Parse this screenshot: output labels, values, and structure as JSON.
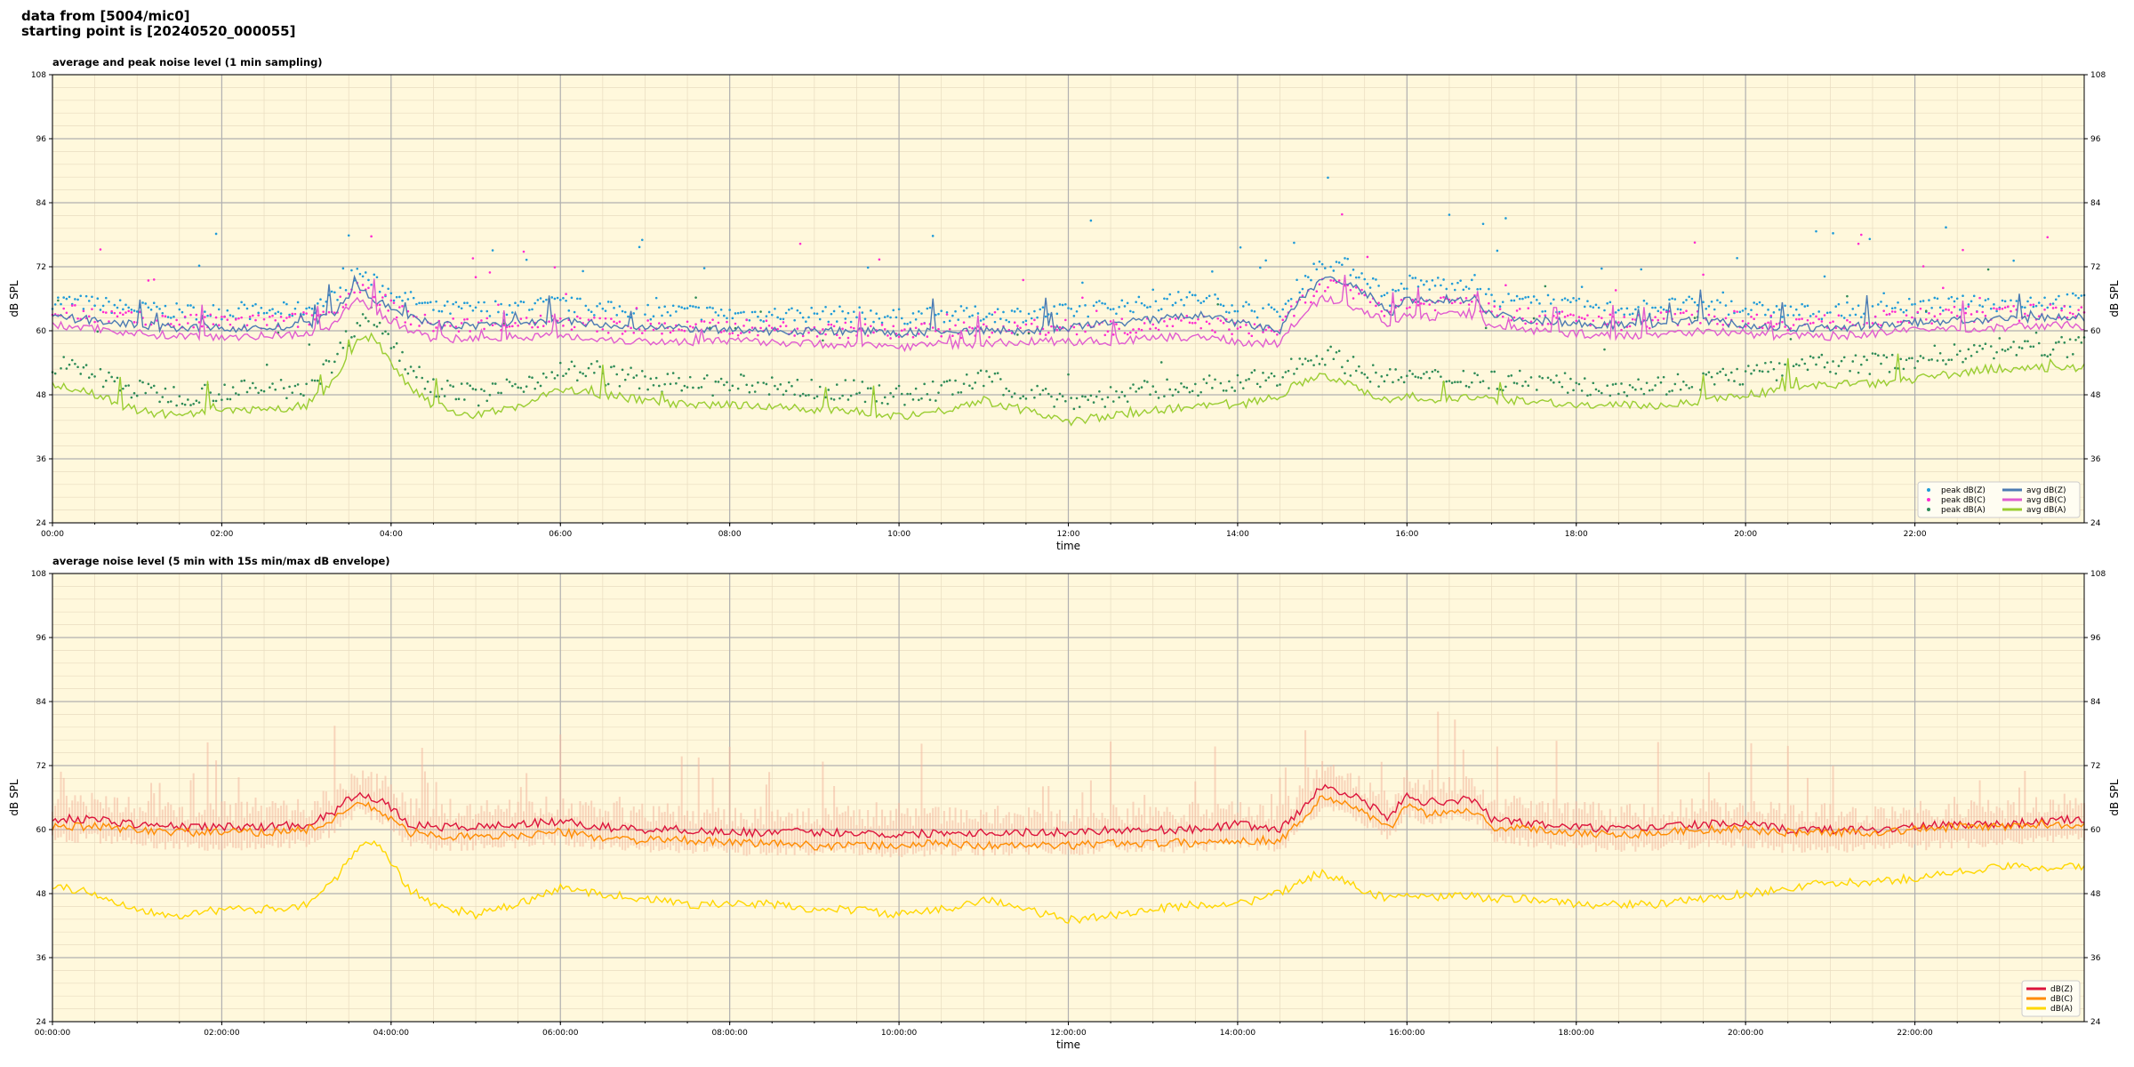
{
  "header": {
    "line1": "data from [5004/mic0]",
    "line2": "starting point is [20240520_000055]"
  },
  "chart_data": [
    {
      "type": "line",
      "title": "average and peak noise level (1 min sampling)",
      "xlabel": "time",
      "ylabel": "dB SPL",
      "xlim": [
        0,
        24
      ],
      "ylim": [
        24,
        108
      ],
      "yticks": [
        24,
        36,
        48,
        60,
        72,
        84,
        96,
        108
      ],
      "xtick_labels": [
        "00:00",
        "02:00",
        "04:00",
        "06:00",
        "08:00",
        "10:00",
        "12:00",
        "14:00",
        "16:00",
        "18:00",
        "20:00",
        "22:00"
      ],
      "grid": true,
      "legend": "bottom-right",
      "x": [
        0,
        0.5,
        1,
        1.5,
        2,
        2.5,
        3,
        3.3,
        3.6,
        3.8,
        4,
        4.2,
        4.5,
        5,
        5.5,
        6,
        6.5,
        7,
        7.5,
        8,
        8.5,
        9,
        9.5,
        10,
        10.5,
        11,
        11.5,
        12,
        12.5,
        13,
        13.5,
        14,
        14.5,
        14.7,
        15,
        15.3,
        15.6,
        15.8,
        16,
        16.2,
        16.5,
        16.8,
        17,
        17.5,
        18,
        18.5,
        19,
        19.5,
        20,
        20.5,
        21,
        21.5,
        22,
        22.5,
        23,
        23.5,
        24
      ],
      "series": [
        {
          "name": "avg dB(Z)",
          "kind": "line",
          "color": "#4c7bb3",
          "values": [
            62.5,
            62,
            61,
            60.5,
            60.5,
            60.5,
            61,
            63,
            68,
            66,
            64,
            63,
            61,
            61,
            61.5,
            62,
            61,
            60.5,
            60.5,
            60,
            60,
            60,
            60,
            59.5,
            60,
            60,
            60,
            60.5,
            61.5,
            62,
            63,
            61.5,
            60,
            65,
            70,
            69,
            66,
            63,
            66,
            65.5,
            66,
            66,
            63,
            62,
            61.5,
            61,
            61.5,
            62,
            61,
            60.5,
            60.5,
            61,
            61.5,
            62,
            62,
            62.5,
            62.5
          ]
        },
        {
          "name": "avg dB(C)",
          "kind": "line",
          "color": "#e05cd0",
          "values": [
            61,
            60.5,
            59.5,
            59,
            59,
            59,
            59.5,
            61,
            66,
            64,
            62,
            60,
            58.5,
            58.5,
            59,
            59,
            58.5,
            58,
            58,
            58,
            58,
            57.5,
            57.5,
            57,
            57.5,
            57.5,
            58,
            58,
            58,
            58.5,
            59,
            58,
            57.5,
            62,
            66,
            65,
            63,
            61,
            63,
            62.5,
            63,
            63,
            61,
            60,
            59.5,
            59,
            59.5,
            60,
            59.5,
            59,
            59,
            59.5,
            60,
            60.5,
            60.5,
            61,
            61
          ]
        },
        {
          "name": "avg dB(A)",
          "kind": "line",
          "color": "#9acd32",
          "values": [
            50,
            48,
            45,
            44,
            45,
            45,
            46,
            50,
            58,
            59,
            54,
            50,
            46,
            44,
            46,
            49,
            48,
            47,
            46,
            46,
            46,
            45,
            45,
            44,
            45,
            47,
            45,
            43,
            44,
            45,
            46,
            46,
            48,
            50,
            52,
            50,
            48,
            47,
            48,
            47,
            47.5,
            47.5,
            47,
            47,
            46,
            46,
            46,
            47,
            48,
            49,
            50,
            50,
            51,
            52,
            53,
            53,
            53
          ]
        },
        {
          "name": "peak dB(Z)",
          "kind": "scatter",
          "color": "#1f9bd8",
          "offset": 2.5,
          "spread": 3
        },
        {
          "name": "peak dB(C)",
          "kind": "scatter",
          "color": "#ff2bd0",
          "offset": 2,
          "spread": 3
        },
        {
          "name": "peak dB(A)",
          "kind": "scatter",
          "color": "#2e8b57",
          "offset": 3,
          "spread": 4
        }
      ]
    },
    {
      "type": "line",
      "title": "average noise level (5 min with 15s min/max dB envelope)",
      "xlabel": "time",
      "ylabel": "dB SPL",
      "xlim": [
        0,
        24
      ],
      "ylim": [
        24,
        108
      ],
      "yticks": [
        24,
        36,
        48,
        60,
        72,
        84,
        96,
        108
      ],
      "xtick_labels": [
        "00:00:00",
        "02:00:00",
        "04:00:00",
        "06:00:00",
        "08:00:00",
        "10:00:00",
        "12:00:00",
        "14:00:00",
        "16:00:00",
        "18:00:00",
        "20:00:00",
        "22:00:00"
      ],
      "grid": true,
      "legend": "bottom-right",
      "x": [
        0,
        0.5,
        1,
        1.5,
        2,
        2.5,
        3,
        3.3,
        3.6,
        3.8,
        4,
        4.2,
        4.5,
        5,
        5.5,
        6,
        6.5,
        7,
        7.5,
        8,
        8.5,
        9,
        9.5,
        10,
        10.5,
        11,
        11.5,
        12,
        12.5,
        13,
        13.5,
        14,
        14.5,
        14.7,
        15,
        15.3,
        15.6,
        15.8,
        16,
        16.2,
        16.5,
        16.8,
        17,
        17.5,
        18,
        18.5,
        19,
        19.5,
        20,
        20.5,
        21,
        21.5,
        22,
        22.5,
        23,
        23.5,
        24
      ],
      "series": [
        {
          "name": "dB(Z)",
          "kind": "line",
          "color": "#dc143c",
          "values": [
            62,
            62,
            61,
            60.5,
            60.5,
            60.5,
            61,
            63,
            67,
            66,
            64,
            61,
            60.5,
            60.5,
            61,
            61.5,
            60.5,
            60,
            60,
            59.5,
            59.5,
            59.5,
            59.5,
            59,
            59.5,
            59.5,
            59.5,
            59.5,
            60,
            60,
            60,
            61,
            60,
            63,
            68,
            67,
            64,
            62,
            67,
            65,
            65.5,
            65.5,
            62,
            61,
            60.5,
            60,
            60.5,
            61,
            61,
            60,
            60,
            60,
            60.5,
            61,
            61,
            61.5,
            62
          ]
        },
        {
          "name": "dB(C)",
          "kind": "line",
          "color": "#ff8c00",
          "values": [
            60.5,
            60.5,
            60,
            59.5,
            59.5,
            59.5,
            60,
            61.5,
            65,
            64,
            62,
            59.5,
            59,
            58.5,
            59,
            59.5,
            58.5,
            58,
            58,
            57.5,
            57.5,
            57,
            57,
            57,
            57.5,
            57,
            57,
            57,
            57.5,
            57.5,
            57.5,
            58,
            58,
            61,
            66,
            65,
            62,
            60,
            65,
            63,
            63.5,
            63.5,
            60.5,
            60,
            59.5,
            59,
            59.5,
            60,
            60,
            59.5,
            59.5,
            59.5,
            60,
            60.5,
            60.5,
            61,
            61
          ]
        },
        {
          "name": "dB(A)",
          "kind": "line",
          "color": "#ffd700",
          "values": [
            49.5,
            48,
            45,
            44,
            45,
            45,
            46,
            50,
            56,
            58,
            54,
            49,
            46,
            44,
            46,
            49,
            48,
            47,
            46,
            46,
            46,
            45,
            45,
            44,
            45,
            47,
            45,
            43,
            44,
            45,
            46,
            46,
            48,
            50,
            52,
            50,
            48,
            47,
            48,
            47,
            47.5,
            47.5,
            47,
            47,
            46,
            46,
            46,
            47,
            48,
            49,
            50,
            50,
            51,
            52,
            53,
            53,
            53
          ]
        },
        {
          "name": "",
          "kind": "envelope",
          "color": "#f4b8a0",
          "spread": 4
        }
      ]
    }
  ]
}
